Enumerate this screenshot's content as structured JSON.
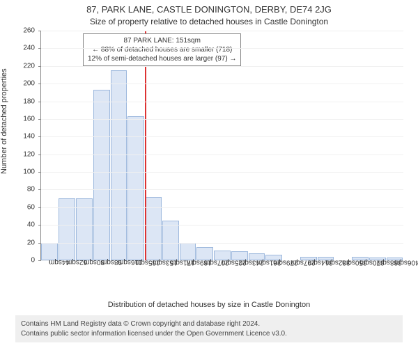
{
  "header": {
    "address": "87, PARK LANE, CASTLE DONINGTON, DERBY, DE74 2JG",
    "subtitle": "Size of property relative to detached houses in Castle Donington"
  },
  "chart": {
    "type": "histogram",
    "ylabel": "Number of detached properties",
    "caption": "Distribution of detached houses by size in Castle Donington",
    "background_color": "#ffffff",
    "grid_color": "#f0f0f0",
    "axis_color": "#888888",
    "bar_fill": "#dce6f5",
    "bar_border": "#9db8dd",
    "marker_color": "#d33",
    "title_fontsize": 13,
    "subtitle_fontsize": 12,
    "label_fontsize": 11,
    "tick_fontsize": 10,
    "y": {
      "min": 0,
      "max": 260,
      "step": 20
    },
    "x_labels": [
      "44sqm",
      "62sqm",
      "80sqm",
      "98sqm",
      "116sqm",
      "135sqm",
      "153sqm",
      "171sqm",
      "189sqm",
      "207sqm",
      "225sqm",
      "243sqm",
      "261sqm",
      "279sqm",
      "297sqm",
      "314sqm",
      "332sqm",
      "350sqm",
      "370sqm",
      "388sqm",
      "406sqm"
    ],
    "values": [
      20,
      70,
      70,
      193,
      215,
      163,
      72,
      45,
      20,
      15,
      11,
      10,
      8,
      6,
      0,
      4,
      4,
      0,
      4,
      3,
      3
    ],
    "marker_index": 6,
    "annotation": {
      "line1": "87 PARK LANE: 151sqm",
      "line2": "← 88% of detached houses are smaller (718)",
      "line3": "12% of semi-detached houses are larger (97) →"
    }
  },
  "attribution": {
    "line1": "Contains HM Land Registry data © Crown copyright and database right 2024.",
    "line2": "Contains public sector information licensed under the Open Government Licence v3.0."
  }
}
